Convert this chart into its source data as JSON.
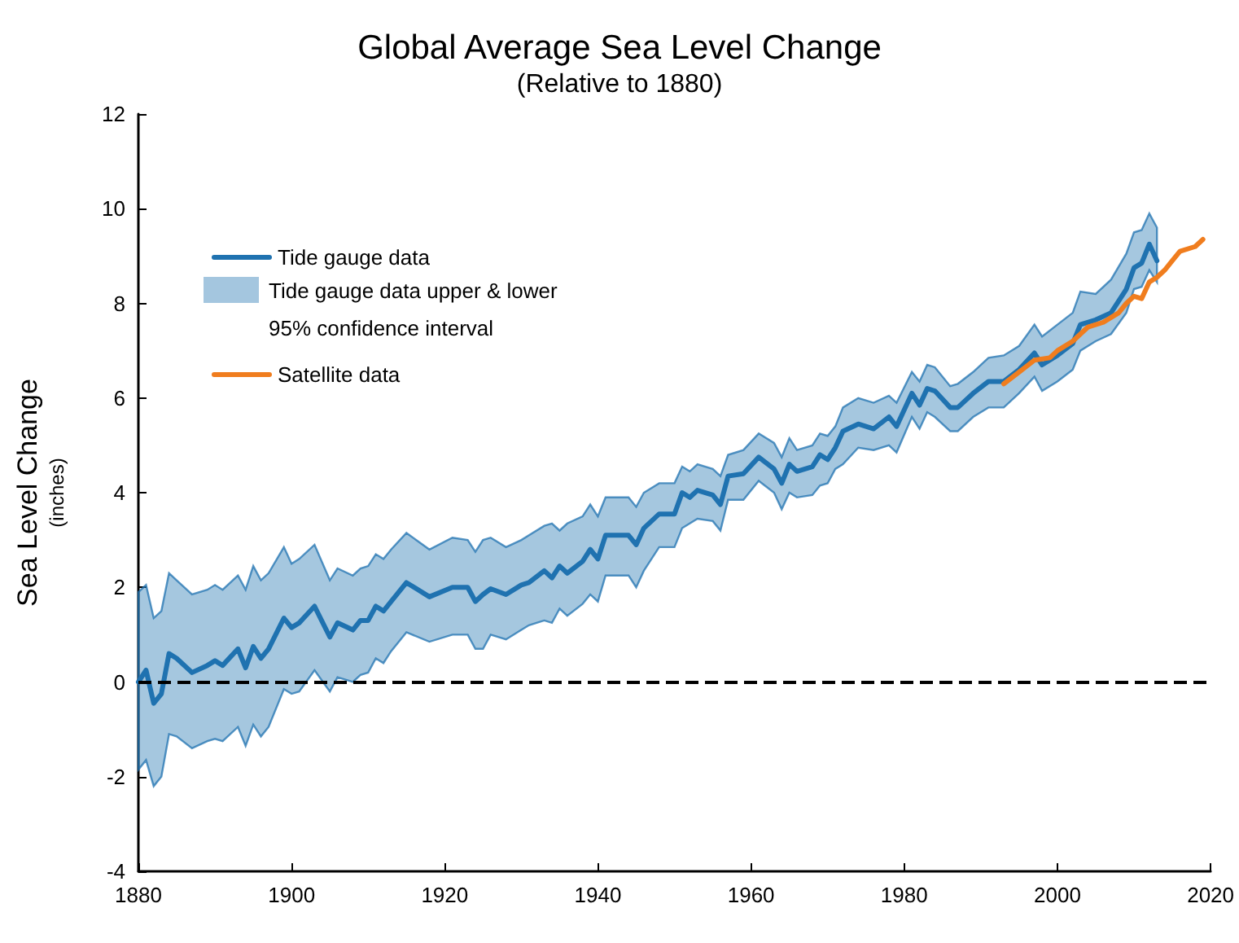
{
  "chart_data": {
    "type": "line",
    "title": "Global Average Sea Level Change",
    "subtitle": "(Relative to 1880)",
    "ylabel": "Sea Level Change\n(inches)",
    "xlim": [
      1880,
      2020
    ],
    "xticks": [
      1880,
      1900,
      1920,
      1940,
      1960,
      1980,
      2000,
      2020
    ],
    "ylim": [
      -4,
      12
    ],
    "yticks": [
      -4,
      -2,
      0,
      2,
      4,
      6,
      8,
      10,
      12
    ],
    "grid": false,
    "legend": "top left",
    "marker": "none",
    "line_style": "solid",
    "annotations": [
      "Tide gauge data upper & lower 95% confidence interval"
    ],
    "ref_lines": [
      {
        "axis": "y",
        "value": 0,
        "color": "#000000",
        "line_style": "dashed"
      }
    ],
    "series": [
      {
        "name": "Tide gauge data",
        "color": "#1f72b0",
        "x": [
          1880,
          1881,
          1882,
          1883,
          1884,
          1885,
          1887,
          1889,
          1890,
          1891,
          1893,
          1894,
          1895,
          1896,
          1897,
          1899,
          1900,
          1901,
          1903,
          1905,
          1906,
          1908,
          1909,
          1910,
          1911,
          1912,
          1913,
          1915,
          1918,
          1921,
          1923,
          1924,
          1925,
          1926,
          1928,
          1930,
          1931,
          1933,
          1934,
          1935,
          1936,
          1938,
          1939,
          1940,
          1941,
          1944,
          1945,
          1946,
          1948,
          1950,
          1951,
          1952,
          1953,
          1955,
          1956,
          1957,
          1959,
          1961,
          1963,
          1964,
          1965,
          1966,
          1968,
          1969,
          1970,
          1971,
          1972,
          1974,
          1976,
          1978,
          1979,
          1981,
          1982,
          1983,
          1984,
          1986,
          1987,
          1989,
          1991,
          1993,
          1995,
          1997,
          1998,
          2000,
          2002,
          2003,
          2005,
          2007,
          2009,
          2010,
          2011,
          2012,
          2013
        ],
        "values": [
          0.0,
          0.25,
          -0.45,
          -0.25,
          0.6,
          0.5,
          0.2,
          0.35,
          0.45,
          0.35,
          0.7,
          0.3,
          0.75,
          0.5,
          0.7,
          1.35,
          1.15,
          1.25,
          1.6,
          0.95,
          1.25,
          1.1,
          1.3,
          1.3,
          1.6,
          1.5,
          1.7,
          2.1,
          1.8,
          2.0,
          2.0,
          1.7,
          1.85,
          1.97,
          1.85,
          2.05,
          2.1,
          2.35,
          2.2,
          2.45,
          2.3,
          2.55,
          2.8,
          2.6,
          3.1,
          3.1,
          2.9,
          3.25,
          3.55,
          3.55,
          4.0,
          3.9,
          4.05,
          3.95,
          3.75,
          4.35,
          4.4,
          4.75,
          4.5,
          4.2,
          4.6,
          4.45,
          4.55,
          4.8,
          4.7,
          4.95,
          5.3,
          5.45,
          5.35,
          5.6,
          5.4,
          6.1,
          5.85,
          6.2,
          6.15,
          5.8,
          5.8,
          6.1,
          6.35,
          6.35,
          6.6,
          6.95,
          6.7,
          6.9,
          7.15,
          7.55,
          7.65,
          7.8,
          8.3,
          8.75,
          8.85,
          9.25,
          8.9
        ],
        "upper": [
          1.9,
          2.05,
          1.35,
          1.5,
          2.3,
          2.15,
          1.85,
          1.95,
          2.05,
          1.95,
          2.25,
          1.95,
          2.45,
          2.15,
          2.3,
          2.85,
          2.5,
          2.6,
          2.9,
          2.15,
          2.4,
          2.25,
          2.4,
          2.45,
          2.7,
          2.6,
          2.8,
          3.15,
          2.8,
          3.05,
          3.0,
          2.75,
          3.0,
          3.05,
          2.85,
          3.0,
          3.1,
          3.3,
          3.35,
          3.2,
          3.35,
          3.5,
          3.75,
          3.5,
          3.9,
          3.9,
          3.7,
          4.0,
          4.2,
          4.2,
          4.55,
          4.45,
          4.6,
          4.5,
          4.35,
          4.8,
          4.9,
          5.25,
          5.05,
          4.75,
          5.15,
          4.9,
          5.0,
          5.25,
          5.2,
          5.4,
          5.8,
          6.0,
          5.9,
          6.05,
          5.9,
          6.55,
          6.35,
          6.7,
          6.65,
          6.25,
          6.3,
          6.55,
          6.85,
          6.9,
          7.1,
          7.55,
          7.3,
          7.55,
          7.8,
          8.25,
          8.2,
          8.5,
          9.05,
          9.5,
          9.55,
          9.9,
          9.6
        ],
        "lower": [
          -1.85,
          -1.65,
          -2.2,
          -2.0,
          -1.1,
          -1.15,
          -1.4,
          -1.25,
          -1.2,
          -1.25,
          -0.95,
          -1.35,
          -0.9,
          -1.15,
          -0.95,
          -0.15,
          -0.25,
          -0.2,
          0.25,
          -0.2,
          0.1,
          0.0,
          0.15,
          0.2,
          0.5,
          0.4,
          0.65,
          1.05,
          0.85,
          1.0,
          1.0,
          0.7,
          0.7,
          1.0,
          0.9,
          1.1,
          1.2,
          1.3,
          1.25,
          1.55,
          1.4,
          1.65,
          1.85,
          1.7,
          2.25,
          2.25,
          2.0,
          2.35,
          2.85,
          2.85,
          3.25,
          3.35,
          3.45,
          3.4,
          3.2,
          3.85,
          3.85,
          4.25,
          4.0,
          3.65,
          4.0,
          3.9,
          3.95,
          4.15,
          4.2,
          4.5,
          4.6,
          4.95,
          4.9,
          5.0,
          4.85,
          5.6,
          5.35,
          5.7,
          5.6,
          5.3,
          5.3,
          5.6,
          5.8,
          5.8,
          6.1,
          6.45,
          6.15,
          6.35,
          6.6,
          7.0,
          7.2,
          7.35,
          7.8,
          8.3,
          8.35,
          8.7,
          8.45
        ]
      },
      {
        "name": "Satellite data",
        "color": "#f07d1e",
        "x": [
          1993,
          1995,
          1997,
          1999,
          2000,
          2002,
          2004,
          2006,
          2008,
          2009,
          2010,
          2011,
          2012,
          2013,
          2014,
          2015,
          2016,
          2018,
          2019
        ],
        "values": [
          6.3,
          6.55,
          6.8,
          6.85,
          7.0,
          7.2,
          7.5,
          7.6,
          7.8,
          8.0,
          8.15,
          8.1,
          8.45,
          8.55,
          8.7,
          8.9,
          9.1,
          9.2,
          9.35
        ]
      }
    ]
  }
}
